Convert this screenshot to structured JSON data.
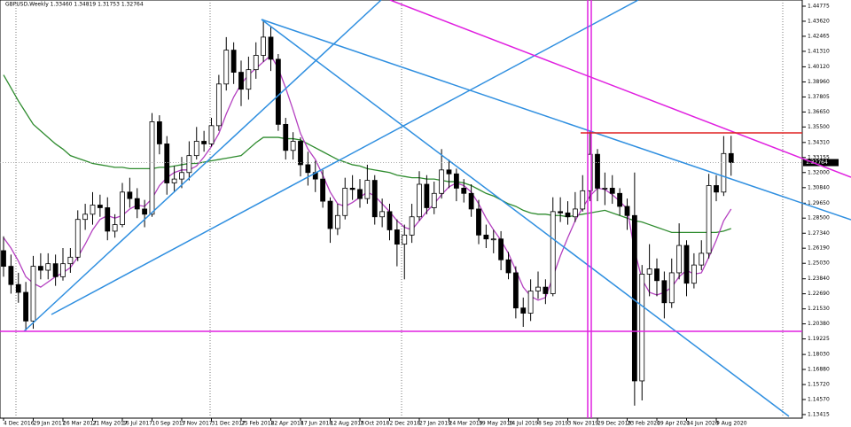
{
  "chart_data": {
    "type": "candlestick",
    "title": "GBPUSD,Weekly  1.33460 1.34819 1.31753 1.32764",
    "categories": [
      "4 Dec 2016",
      null,
      null,
      null,
      "29 Jan 2017",
      null,
      null,
      null,
      "26 Mar 2017",
      null,
      null,
      null,
      "21 May 2017",
      null,
      null,
      null,
      "16 Jul 2017",
      null,
      null,
      null,
      "10 Sep 2017",
      null,
      null,
      null,
      "5 Nov 2017",
      null,
      null,
      null,
      "31 Dec 2017",
      null,
      null,
      null,
      "25 Feb 2018",
      null,
      null,
      null,
      "22 Apr 2018",
      null,
      null,
      null,
      "17 Jun 2018",
      null,
      null,
      null,
      "12 Aug 2018",
      null,
      null,
      null,
      "7 Oct 2018",
      null,
      null,
      null,
      "2 Dec 2018",
      null,
      null,
      null,
      "27 Jan 2019",
      null,
      null,
      null,
      "24 Mar 2019",
      null,
      null,
      null,
      "19 May 2019",
      null,
      null,
      null,
      "14 Jul 2019",
      null,
      null,
      null,
      "8 Sep 2019",
      null,
      null,
      null,
      "3 Nov 2019",
      null,
      null,
      null,
      "29 Dec 2019",
      null,
      null,
      null,
      "23 Feb 2020",
      null,
      null,
      null,
      "19 Apr 2020",
      null,
      null,
      null,
      "14 Jun 2020",
      null,
      null,
      null,
      "9 Aug 2020",
      null,
      null
    ],
    "open": [
      1.26,
      1.248,
      1.234,
      1.228,
      1.206,
      1.248,
      1.245,
      1.25,
      1.24,
      1.25,
      1.255,
      1.284,
      1.288,
      1.295,
      1.293,
      1.275,
      1.28,
      1.305,
      1.3,
      1.292,
      1.288,
      1.359,
      1.342,
      1.312,
      1.315,
      1.32,
      1.333,
      1.344,
      1.342,
      1.356,
      1.388,
      1.414,
      1.397,
      1.384,
      1.399,
      1.41,
      1.424,
      1.407,
      1.357,
      1.337,
      1.344,
      1.326,
      1.32,
      1.315,
      1.298,
      1.277,
      1.287,
      1.308,
      1.307,
      1.3,
      1.314,
      1.286,
      1.29,
      1.276,
      1.265,
      1.272,
      1.286,
      1.311,
      1.293,
      1.304,
      1.322,
      1.319,
      1.308,
      1.304,
      1.292,
      1.272,
      1.269,
      1.269,
      1.253,
      1.243,
      1.216,
      1.212,
      1.229,
      1.232,
      1.227,
      1.29,
      1.289,
      1.286,
      1.292,
      1.306,
      1.334,
      1.308,
      1.308,
      1.304,
      1.294,
      1.287,
      1.16,
      1.242,
      1.246,
      1.237,
      1.22,
      1.243,
      1.264,
      1.235,
      1.249,
      1.258,
      1.31,
      1.305,
      1.3346
    ],
    "high": [
      1.271,
      1.257,
      1.243,
      1.236,
      1.256,
      1.258,
      1.258,
      1.257,
      1.262,
      1.262,
      1.291,
      1.296,
      1.305,
      1.303,
      1.301,
      1.288,
      1.312,
      1.316,
      1.308,
      1.299,
      1.3657,
      1.364,
      1.348,
      1.325,
      1.332,
      1.344,
      1.355,
      1.352,
      1.362,
      1.395,
      1.424,
      1.42,
      1.406,
      1.409,
      1.42,
      1.4376,
      1.432,
      1.411,
      1.362,
      1.351,
      1.347,
      1.336,
      1.329,
      1.322,
      1.301,
      1.296,
      1.316,
      1.318,
      1.315,
      1.326,
      1.318,
      1.3,
      1.296,
      1.284,
      1.28,
      1.296,
      1.321,
      1.318,
      1.313,
      1.338,
      1.33,
      1.323,
      1.315,
      1.311,
      1.299,
      1.28,
      1.276,
      1.275,
      1.259,
      1.248,
      1.224,
      1.238,
      1.244,
      1.238,
      1.301,
      1.301,
      1.298,
      1.305,
      1.318,
      1.3515,
      1.338,
      1.32,
      1.318,
      1.308,
      1.3,
      1.32,
      1.249,
      1.265,
      1.254,
      1.244,
      1.254,
      1.281,
      1.268,
      1.258,
      1.268,
      1.319,
      1.318,
      1.348,
      1.34819
    ],
    "low": [
      1.24,
      1.227,
      1.22,
      1.1986,
      1.2,
      1.238,
      1.238,
      1.233,
      1.237,
      1.243,
      1.252,
      1.276,
      1.28,
      1.286,
      1.268,
      1.27,
      1.278,
      1.293,
      1.285,
      1.278,
      1.286,
      1.334,
      1.303,
      1.305,
      1.308,
      1.314,
      1.33,
      1.336,
      1.34,
      1.352,
      1.383,
      1.388,
      1.371,
      1.376,
      1.392,
      1.405,
      1.398,
      1.352,
      1.33,
      1.33,
      1.317,
      1.31,
      1.305,
      1.293,
      1.266,
      1.272,
      1.284,
      1.299,
      1.293,
      1.296,
      1.28,
      1.278,
      1.268,
      1.248,
      1.238,
      1.266,
      1.283,
      1.288,
      1.288,
      1.3,
      1.308,
      1.298,
      1.297,
      1.286,
      1.265,
      1.262,
      1.258,
      1.245,
      1.238,
      1.208,
      1.2015,
      1.206,
      1.223,
      1.219,
      1.225,
      1.282,
      1.28,
      1.282,
      1.29,
      1.298,
      1.298,
      1.295,
      1.296,
      1.287,
      1.276,
      1.141,
      1.145,
      1.225,
      1.225,
      1.208,
      1.216,
      1.238,
      1.225,
      1.231,
      1.245,
      1.254,
      1.298,
      1.302,
      1.31753
    ],
    "close": [
      1.248,
      1.234,
      1.228,
      1.206,
      1.248,
      1.245,
      1.25,
      1.24,
      1.25,
      1.255,
      1.284,
      1.288,
      1.295,
      1.293,
      1.275,
      1.28,
      1.305,
      1.3,
      1.292,
      1.288,
      1.359,
      1.342,
      1.312,
      1.315,
      1.32,
      1.333,
      1.344,
      1.342,
      1.356,
      1.388,
      1.414,
      1.397,
      1.384,
      1.399,
      1.41,
      1.424,
      1.407,
      1.357,
      1.337,
      1.344,
      1.326,
      1.32,
      1.315,
      1.298,
      1.277,
      1.287,
      1.308,
      1.307,
      1.3,
      1.314,
      1.286,
      1.29,
      1.276,
      1.265,
      1.272,
      1.286,
      1.311,
      1.293,
      1.304,
      1.322,
      1.319,
      1.308,
      1.304,
      1.292,
      1.272,
      1.269,
      1.269,
      1.253,
      1.243,
      1.216,
      1.212,
      1.229,
      1.232,
      1.227,
      1.29,
      1.289,
      1.286,
      1.292,
      1.306,
      1.334,
      1.308,
      1.308,
      1.304,
      1.294,
      1.287,
      1.16,
      1.242,
      1.246,
      1.237,
      1.22,
      1.243,
      1.264,
      1.235,
      1.249,
      1.258,
      1.31,
      1.305,
      1.3346,
      1.32764
    ],
    "series": [
      {
        "color": "#2e8b2e",
        "values": [
          1.395,
          1.385,
          1.375,
          1.366,
          1.357,
          1.352,
          1.347,
          1.342,
          1.338,
          1.333,
          1.331,
          1.329,
          1.327,
          1.326,
          1.325,
          1.324,
          1.324,
          1.323,
          1.323,
          1.323,
          1.323,
          1.324,
          1.324,
          1.325,
          1.326,
          1.327,
          1.327,
          1.328,
          1.329,
          1.33,
          1.331,
          1.332,
          1.333,
          1.338,
          1.343,
          1.347,
          1.347,
          1.347,
          1.346,
          1.346,
          1.345,
          1.342,
          1.339,
          1.336,
          1.333,
          1.33,
          1.328,
          1.326,
          1.325,
          1.323,
          1.322,
          1.321,
          1.32,
          1.318,
          1.317,
          1.316,
          1.316,
          1.315,
          1.315,
          1.314,
          1.313,
          1.313,
          1.312,
          1.31,
          1.307,
          1.304,
          1.302,
          1.299,
          1.296,
          1.294,
          1.291,
          1.289,
          1.288,
          1.288,
          1.287,
          1.287,
          1.286,
          1.287,
          1.288,
          1.289,
          1.29,
          1.291,
          1.289,
          1.287,
          1.285,
          1.283,
          1.282,
          1.28,
          1.278,
          1.276,
          1.274,
          1.274,
          1.274,
          1.274,
          1.274,
          1.274,
          1.274,
          1.275,
          1.277
        ]
      },
      {
        "color": "#b440c0",
        "values": [
          1.27,
          1.262,
          1.252,
          1.24,
          1.235,
          1.232,
          1.236,
          1.24,
          1.243,
          1.247,
          1.255,
          1.265,
          1.276,
          1.284,
          1.287,
          1.285,
          1.287,
          1.292,
          1.295,
          1.294,
          1.3,
          1.31,
          1.316,
          1.32,
          1.322,
          1.322,
          1.325,
          1.332,
          1.34,
          1.35,
          1.365,
          1.378,
          1.388,
          1.395,
          1.4,
          1.405,
          1.41,
          1.4,
          1.385,
          1.368,
          1.35,
          1.338,
          1.33,
          1.318,
          1.305,
          1.296,
          1.294,
          1.297,
          1.301,
          1.305,
          1.302,
          1.296,
          1.29,
          1.283,
          1.278,
          1.276,
          1.283,
          1.29,
          1.296,
          1.303,
          1.309,
          1.312,
          1.31,
          1.305,
          1.296,
          1.285,
          1.276,
          1.268,
          1.258,
          1.245,
          1.232,
          1.225,
          1.222,
          1.224,
          1.24,
          1.256,
          1.27,
          1.283,
          1.293,
          1.302,
          1.308,
          1.307,
          1.303,
          1.298,
          1.292,
          1.26,
          1.238,
          1.228,
          1.226,
          1.228,
          1.232,
          1.24,
          1.245,
          1.242,
          1.243,
          1.255,
          1.268,
          1.283,
          1.292
        ]
      }
    ],
    "ylim": [
      1.1314,
      1.4525
    ],
    "yticks": [
      1.44775,
      {
        "value": 1.4362,
        "label": "1.43620"
      },
      1.42465,
      {
        "value": 1.4131,
        "label": "1.41310"
      },
      {
        "value": 1.4012,
        "label": "1.40120"
      },
      {
        "value": 1.3896,
        "label": "1.38960"
      },
      1.37805,
      {
        "value": 1.3665,
        "label": "1.36650"
      },
      {
        "value": 1.355,
        "label": "1.35500"
      },
      {
        "value": 1.3431,
        "label": "1.34310"
      },
      1.33155,
      {
        "value": 1.32,
        "label": "1.32000"
      },
      {
        "value": 1.3084,
        "label": "1.30840"
      },
      {
        "value": 1.2965,
        "label": "1.29650"
      },
      {
        "value": 1.285,
        "label": "1.28500"
      },
      {
        "value": 1.2734,
        "label": "1.27340"
      },
      {
        "value": 1.2619,
        "label": "1.26190"
      },
      {
        "value": 1.2503,
        "label": "1.25030"
      },
      {
        "value": 1.2384,
        "label": "1.23840"
      },
      {
        "value": 1.2269,
        "label": "1.22690"
      },
      {
        "value": 1.2153,
        "label": "1.21530"
      },
      {
        "value": 1.2038,
        "label": "1.20380"
      },
      1.19225,
      {
        "value": 1.1803,
        "label": "1.18030"
      },
      {
        "value": 1.1688,
        "label": "1.16880"
      },
      {
        "value": 1.1572,
        "label": "1.15720"
      },
      {
        "value": 1.1457,
        "label": "1.14570"
      },
      1.13415
    ]
  }
}
